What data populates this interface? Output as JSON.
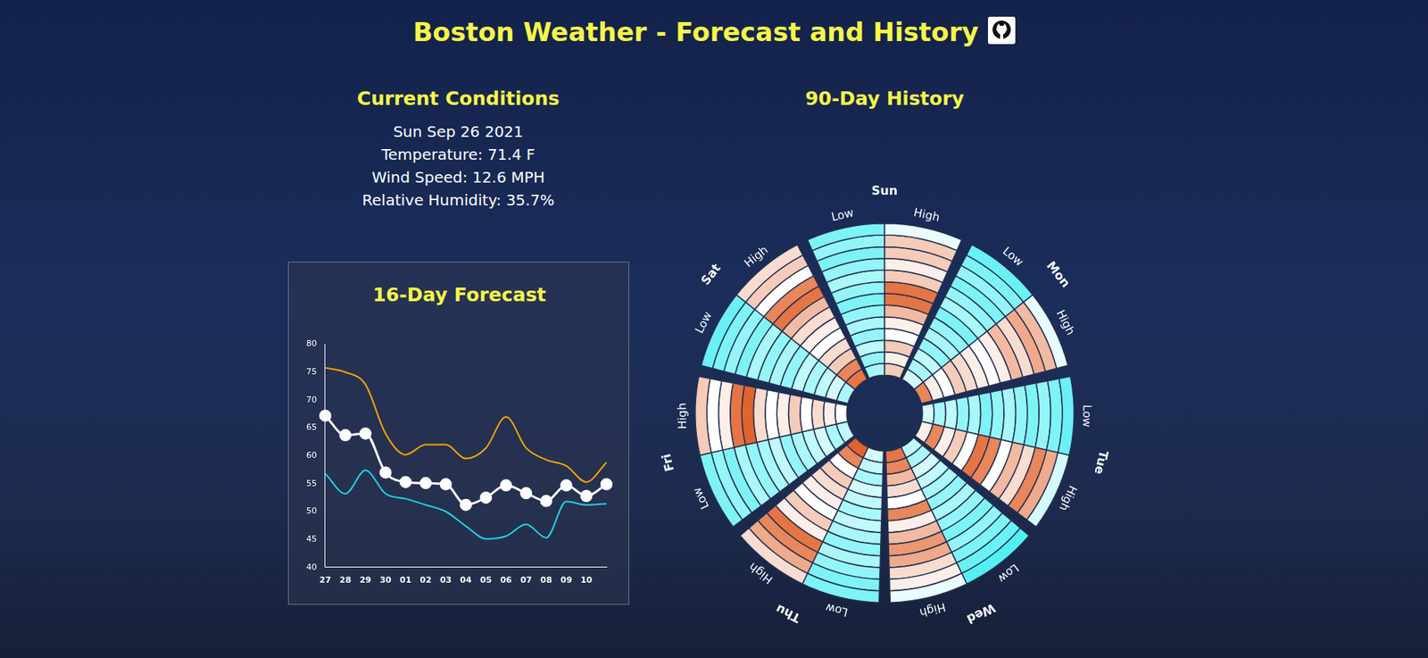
{
  "title": "Boston Weather - Forecast and History",
  "current_conditions": {
    "heading": "Current Conditions",
    "lines": [
      "Sun Sep 26 2021",
      "Temperature: 71.4 F",
      "Wind Speed: 12.6 MPH",
      "Relative Humidity: 35.7%"
    ]
  },
  "chart_data": [
    {
      "type": "line",
      "title": "16-Day Forecast",
      "categories": [
        "27",
        "28",
        "29",
        "30",
        "01",
        "02",
        "03",
        "04",
        "05",
        "06",
        "07",
        "08",
        "09",
        "10",
        null
      ],
      "series": [
        {
          "color": "#ffa500",
          "marker": "none",
          "values": [
            75.8,
            75,
            72.8,
            64,
            60.2,
            62,
            62,
            59.5,
            61.4,
            67,
            61.4,
            59.3,
            58.2,
            55.3,
            58.8
          ]
        },
        {
          "color": "#22d3e6",
          "marker": "none",
          "values": [
            56.8,
            53.2,
            57.4,
            53.2,
            52.3,
            51.2,
            50,
            47.4,
            45.1,
            45.6,
            47.7,
            45.3,
            51.8,
            51.2,
            51.4
          ]
        },
        {
          "color": "#ffffff",
          "marker": "circle",
          "values": [
            67.2,
            63.7,
            64,
            57,
            55.3,
            55.1,
            54.9,
            51.2,
            52.5,
            54.7,
            53.3,
            51.9,
            54.7,
            52.8,
            54.9
          ]
        }
      ],
      "ylim": [
        40,
        80
      ],
      "yticks": [
        40,
        45,
        50,
        55,
        60,
        65,
        70,
        75,
        80
      ],
      "grid": false
    },
    {
      "type": "radial_heatmap",
      "title": "90-Day History",
      "categories": [
        "Sun",
        "Mon",
        "Tue",
        "Wed",
        "Thu",
        "Fri",
        "Sat"
      ],
      "series": [
        {
          "name": "Low",
          "values": [
            [
              58,
              60,
              58,
              60,
              62,
              60,
              58,
              60,
              62,
              60,
              64,
              60,
              62
            ],
            [
              56,
              58,
              60,
              58,
              60,
              62,
              58,
              60,
              62,
              60,
              64,
              62,
              66
            ],
            [
              56,
              58,
              60,
              58,
              60,
              62,
              60,
              58,
              62,
              60,
              64,
              62,
              66
            ],
            [
              54,
              56,
              58,
              60,
              58,
              60,
              62,
              60,
              62,
              64,
              66,
              62,
              64
            ],
            [
              58,
              58,
              60,
              62,
              60,
              62,
              64,
              62,
              64,
              66,
              62,
              64,
              66
            ],
            [
              58,
              60,
              58,
              62,
              60,
              62,
              64,
              60,
              62,
              64,
              66,
              62,
              64
            ],
            [
              56,
              58,
              60,
              58,
              62,
              60,
              62,
              60,
              64,
              62,
              64,
              66,
              62
            ]
          ]
        },
        {
          "name": "High",
          "values": [
            [
              68,
              76,
              76,
              72,
              76,
              86,
              86,
              78,
              72,
              70,
              76,
              72,
              76
            ],
            [
              68,
              78,
              80,
              74,
              78,
              72,
              70,
              72,
              74,
              76,
              70,
              72,
              84
            ],
            [
              66,
              80,
              84,
              74,
              78,
              70,
              84,
              86,
              70,
              76,
              72,
              84,
              72
            ],
            [
              68,
              72,
              74,
              80,
              82,
              78,
              72,
              84,
              70,
              74,
              78,
              84,
              86
            ],
            [
              74,
              80,
              84,
              86,
              72,
              76,
              70,
              72,
              74,
              76,
              70,
              84,
              88
            ],
            [
              76,
              70,
              72,
              86,
              88,
              74,
              70,
              72,
              76,
              70,
              74,
              72,
              70
            ],
            [
              74,
              76,
              70,
              84,
              86,
              78,
              74,
              72,
              70,
              74,
              76,
              84,
              86
            ]
          ]
        }
      ],
      "color_range": [
        50,
        90
      ]
    }
  ]
}
